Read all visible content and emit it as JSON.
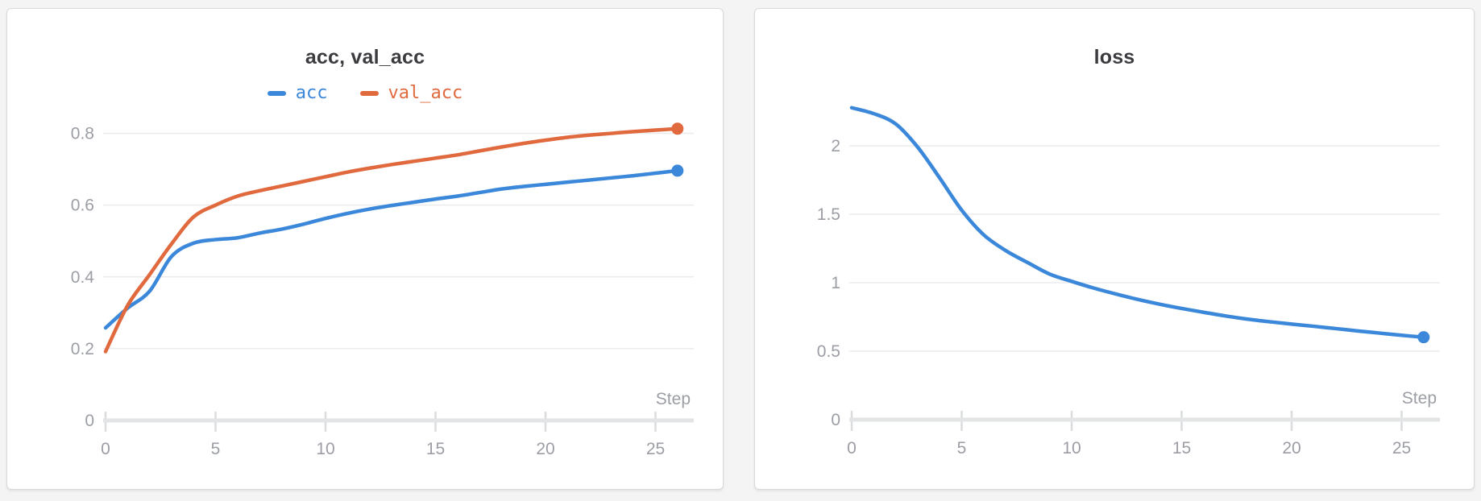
{
  "theme": {
    "page_background": "#f4f4f5",
    "panel_background": "#ffffff",
    "panel_border": "#d9d9db",
    "grid_color": "#ebebee",
    "axis_color": "#e3e4e6",
    "tick_color": "#dadcde",
    "tick_label_color": "#9b9ea4",
    "title_color": "#3b3b40",
    "series_blue": "#3b87d9",
    "series_orange": "#e1693e"
  },
  "chart_data": [
    {
      "type": "line",
      "title": "acc, val_acc",
      "xlabel": "Step",
      "grid": "horizontal",
      "legend_position": "top",
      "x": [
        0,
        1,
        2,
        3,
        4,
        5,
        6,
        7,
        8,
        9,
        10,
        11,
        12,
        13,
        14,
        15,
        16,
        17,
        18,
        19,
        20,
        21,
        22,
        23,
        24,
        25,
        26
      ],
      "series": [
        {
          "name": "acc",
          "color": "#3b87d9",
          "end_dot": true,
          "values": [
            0.258,
            0.313,
            0.36,
            0.457,
            0.494,
            0.504,
            0.509,
            0.522,
            0.533,
            0.547,
            0.563,
            0.577,
            0.589,
            0.599,
            0.608,
            0.617,
            0.625,
            0.635,
            0.645,
            0.652,
            0.658,
            0.664,
            0.67,
            0.676,
            0.682,
            0.689,
            0.696
          ]
        },
        {
          "name": "val_acc",
          "color": "#e1693e",
          "end_dot": true,
          "values": [
            0.192,
            0.32,
            0.406,
            0.492,
            0.567,
            0.6,
            0.625,
            0.64,
            0.653,
            0.666,
            0.679,
            0.692,
            0.703,
            0.713,
            0.722,
            0.731,
            0.74,
            0.751,
            0.762,
            0.772,
            0.781,
            0.789,
            0.795,
            0.8,
            0.805,
            0.809,
            0.813
          ]
        }
      ],
      "xlim": [
        0,
        26.74
      ],
      "ylim": [
        0,
        0.9
      ],
      "xticks": [
        0,
        5,
        10,
        15,
        20,
        25
      ],
      "yticks": [
        {
          "value": 0,
          "label": "0"
        },
        {
          "value": 0.2,
          "label": "0.2"
        },
        {
          "value": 0.4,
          "label": "0.4"
        },
        {
          "value": 0.6,
          "label": "0.6"
        },
        {
          "value": 0.8,
          "label": "0.8"
        }
      ]
    },
    {
      "type": "line",
      "title": "loss",
      "xlabel": "Step",
      "grid": "horizontal",
      "legend_position": "none",
      "x": [
        0,
        1,
        2,
        3,
        4,
        5,
        6,
        7,
        8,
        9,
        10,
        11,
        12,
        13,
        14,
        15,
        16,
        17,
        18,
        19,
        20,
        21,
        22,
        23,
        24,
        25,
        26
      ],
      "series": [
        {
          "name": "loss",
          "color": "#3b87d9",
          "end_dot": true,
          "values": [
            2.278,
            2.235,
            2.16,
            1.99,
            1.765,
            1.53,
            1.35,
            1.235,
            1.147,
            1.063,
            1.01,
            0.961,
            0.918,
            0.878,
            0.843,
            0.812,
            0.784,
            0.757,
            0.734,
            0.715,
            0.698,
            0.682,
            0.665,
            0.648,
            0.632,
            0.616,
            0.602
          ]
        }
      ],
      "xlim": [
        0,
        26.74
      ],
      "ylim": [
        0,
        2.4
      ],
      "xticks": [
        0,
        5,
        10,
        15,
        20,
        25
      ],
      "yticks": [
        {
          "value": 0,
          "label": "0"
        },
        {
          "value": 0.5,
          "label": "0.5"
        },
        {
          "value": 1,
          "label": "1"
        },
        {
          "value": 1.5,
          "label": "1.5"
        },
        {
          "value": 2,
          "label": "2"
        }
      ]
    }
  ]
}
